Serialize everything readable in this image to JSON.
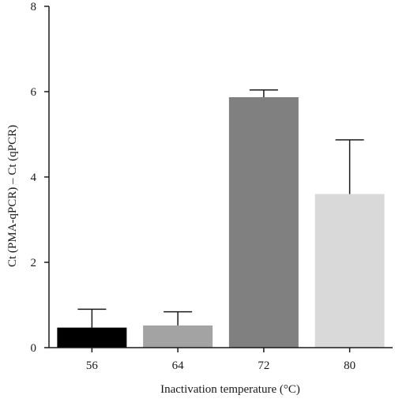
{
  "chart_data": {
    "type": "bar",
    "title": "",
    "xlabel": "Inactivation temperature (°C)",
    "ylabel": "Ct (PMA-qPCR) – Ct (qPCR)",
    "categories": [
      "56",
      "64",
      "72",
      "80"
    ],
    "values": [
      0.47,
      0.52,
      5.87,
      3.6
    ],
    "error_plus": [
      0.43,
      0.32,
      0.17,
      1.27
    ],
    "bar_colors": [
      "#000000",
      "#a3a3a3",
      "#808080",
      "#d9d9d9"
    ],
    "ylim": [
      0,
      8
    ],
    "yticks": [
      0,
      2,
      4,
      6,
      8
    ],
    "grid": false,
    "legend": "none"
  }
}
